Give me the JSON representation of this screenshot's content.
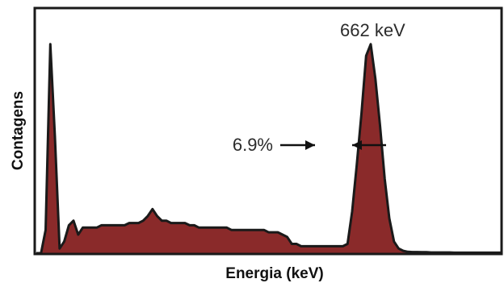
{
  "chart_data": {
    "type": "area",
    "title": "",
    "xlabel": "Energia (keV)",
    "ylabel": "Contagens",
    "xticks_shown": false,
    "yticks_shown": false,
    "grid": false,
    "legend": "none",
    "fill_color": "#8a2a2a",
    "line_color": "#1a1a1a",
    "frame_color": "#1a1a1a",
    "arrow_color": "#111111",
    "x": [
      0,
      1,
      2,
      3,
      4,
      5,
      6,
      7,
      8,
      9,
      10,
      11,
      12,
      13,
      14,
      15,
      16,
      17,
      18,
      19,
      20,
      21,
      22,
      23,
      24,
      25,
      26,
      27,
      28,
      29,
      30,
      31,
      32,
      33,
      34,
      35,
      36,
      37,
      38,
      39,
      40,
      41,
      42,
      43,
      44,
      45,
      46,
      47,
      48,
      49,
      50,
      51,
      52,
      53,
      54,
      55,
      56,
      57,
      58,
      59,
      60,
      61,
      62,
      63,
      64,
      65,
      66,
      67,
      68,
      69,
      70,
      71,
      72,
      73,
      74,
      75,
      76,
      77,
      78,
      79,
      80,
      81,
      82,
      83,
      84,
      85,
      86,
      87,
      88,
      89,
      90,
      91,
      92,
      93,
      94,
      95,
      96,
      97,
      98,
      99,
      100
    ],
    "y": [
      0,
      0,
      10,
      90,
      50,
      2,
      5,
      12,
      14,
      8,
      11,
      11,
      11,
      11,
      12,
      12,
      12,
      12,
      12,
      12,
      13,
      13,
      13,
      14,
      16,
      19,
      16,
      14,
      14,
      13,
      13,
      13,
      13,
      12,
      12,
      11,
      11,
      11,
      11,
      11,
      11,
      11,
      10,
      10,
      10,
      10,
      10,
      10,
      10,
      10,
      9,
      9,
      9,
      8,
      7,
      4,
      4,
      3,
      3,
      3,
      3,
      3,
      3,
      3,
      3,
      3,
      3,
      4,
      18,
      38,
      60,
      85,
      90,
      75,
      55,
      32,
      15,
      5,
      2,
      1,
      0.6,
      0.5,
      0.5,
      0.4,
      0.4,
      0.3,
      0.3,
      0.3,
      0.3,
      0.3,
      0.2,
      0.2,
      0.2,
      0.2,
      0.2,
      0.2,
      0.2,
      0.2,
      0.2,
      0.2,
      0.2
    ],
    "xlim": [
      0,
      100
    ],
    "ylim": [
      0,
      100
    ],
    "annotations": {
      "peak_label": "662 keV",
      "resolution_label": "6.9%"
    }
  }
}
